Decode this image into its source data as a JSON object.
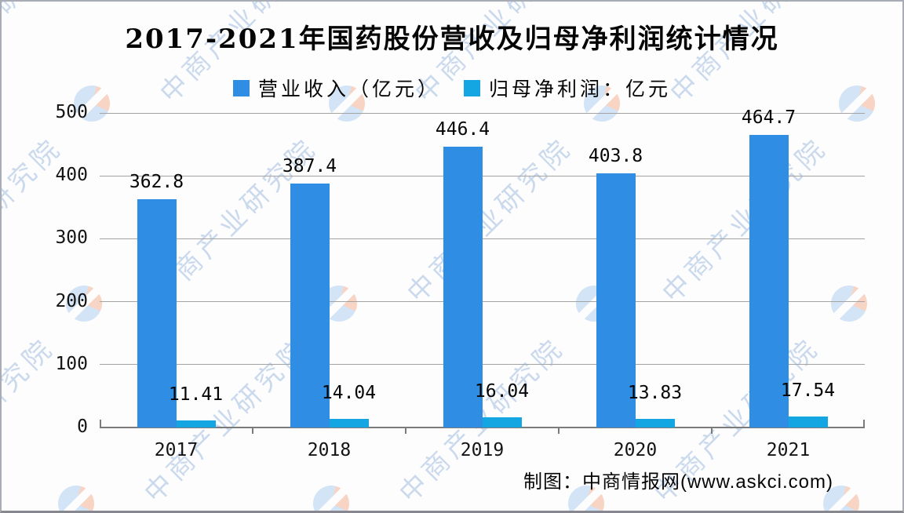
{
  "chart": {
    "attribution": "制图：中商情报网(www.askci.com)",
    "watermark": {
      "text": "中商产业研究院",
      "logo_colors": {
        "blue": "#9fc6ee",
        "orange": "#f2a47e"
      }
    }
  },
  "chart_data": {
    "type": "bar",
    "title": "2017-2021年国药股份营收及归母净利润统计情况",
    "categories": [
      "2017",
      "2018",
      "2019",
      "2020",
      "2021"
    ],
    "series": [
      {
        "name": "营业收入（亿元）",
        "color": "#2f8de4",
        "values": [
          362.8,
          387.4,
          446.4,
          403.8,
          464.7
        ]
      },
      {
        "name": "归母净利润：亿元",
        "color": "#14a5e3",
        "values": [
          11.41,
          14.04,
          16.04,
          13.83,
          17.54
        ]
      }
    ],
    "xlabel": "",
    "ylabel": "",
    "ylim": [
      0,
      500
    ],
    "yticks": [
      0,
      100,
      200,
      300,
      400,
      500
    ],
    "grid": true,
    "legend_position": "top",
    "value_labels": true
  }
}
